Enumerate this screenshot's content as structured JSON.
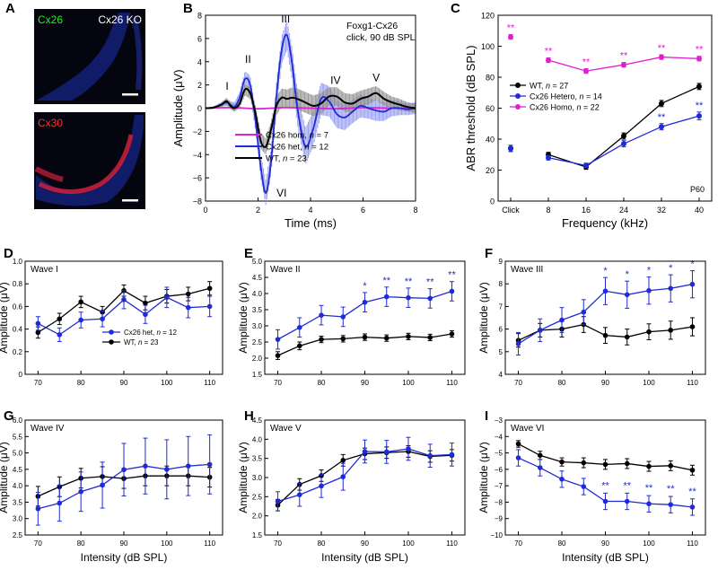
{
  "panel_a": {
    "letter": "A",
    "cx26_label": "Cx26",
    "ko_label": "Cx26 KO",
    "cx30_label": "Cx30"
  },
  "colors": {
    "wt": "#000000",
    "het": "#1f2bd6",
    "hom": "#e020d0",
    "het_fill": "#8c94f0"
  },
  "chart_data": [
    {
      "id": "B",
      "type": "line",
      "title": "Foxg1-Cx26",
      "subtitle": "click, 90 dB SPL",
      "xlabel": "Time (ms)",
      "ylabel": "Amplitude (μV)",
      "xlim": [
        0,
        8
      ],
      "ylim": [
        -8,
        8
      ],
      "xticks": [
        0,
        2,
        4,
        6,
        8
      ],
      "yticks": [
        -8,
        -6,
        -4,
        -2,
        0,
        2,
        4,
        6,
        8
      ],
      "wave_labels": [
        {
          "text": "I",
          "x": 0.82,
          "y": 1.6
        },
        {
          "text": "II",
          "x": 1.62,
          "y": 3.9
        },
        {
          "text": "III",
          "x": 3.05,
          "y": 7.4
        },
        {
          "text": "IV",
          "x": 4.95,
          "y": 2.1
        },
        {
          "text": "V",
          "x": 6.5,
          "y": 2.3
        },
        {
          "text": "VI",
          "x": 2.9,
          "y": -7.6
        }
      ],
      "legend": [
        {
          "label": "Cx26 hom, n = 7",
          "color": "#e020d0"
        },
        {
          "label": "Cx26 het, n = 12",
          "color": "#1f2bd6"
        },
        {
          "label": "WT, n = 23",
          "color": "#000000"
        }
      ],
      "series": [
        {
          "name": "WT",
          "color": "#000000",
          "x": [
            0,
            0.3,
            0.6,
            0.8,
            0.95,
            1.1,
            1.3,
            1.5,
            1.7,
            1.9,
            2.1,
            2.3,
            2.5,
            2.7,
            2.9,
            3.1,
            3.3,
            3.5,
            3.8,
            4.1,
            4.4,
            4.7,
            5.0,
            5.3,
            5.6,
            5.9,
            6.2,
            6.5,
            6.8,
            7.1,
            7.4,
            7.7,
            8.0
          ],
          "y": [
            0,
            0.05,
            0.3,
            0.6,
            0.2,
            0.0,
            0.4,
            1.6,
            1.3,
            -0.4,
            -2.8,
            -3.3,
            -1.8,
            0.2,
            0.9,
            0.8,
            0.9,
            0.8,
            0.5,
            0.2,
            0.4,
            1.0,
            1.0,
            0.5,
            0.4,
            0.8,
            1.0,
            1.3,
            0.8,
            0.5,
            0.3,
            0.1,
            0.0
          ],
          "err": [
            0,
            0.1,
            0.2,
            0.3,
            0.3,
            0.3,
            0.4,
            0.5,
            0.5,
            0.6,
            0.7,
            0.7,
            0.7,
            0.8,
            0.8,
            0.8,
            0.9,
            0.9,
            0.9,
            0.9,
            0.9,
            0.8,
            0.8,
            0.8,
            0.8,
            0.7,
            0.7,
            0.6,
            0.6,
            0.5,
            0.5,
            0.4,
            0.4
          ]
        },
        {
          "name": "Cx26 het",
          "color": "#1f2bd6",
          "x": [
            0,
            0.3,
            0.6,
            0.8,
            0.95,
            1.1,
            1.3,
            1.5,
            1.7,
            1.9,
            2.1,
            2.3,
            2.5,
            2.7,
            2.9,
            3.1,
            3.3,
            3.5,
            3.8,
            4.1,
            4.4,
            4.7,
            5.0,
            5.3,
            5.6,
            5.9,
            6.2,
            6.5,
            6.8,
            7.1,
            7.4,
            7.7,
            8.0
          ],
          "y": [
            0,
            0.05,
            0.3,
            0.5,
            0.3,
            0.1,
            0.9,
            2.5,
            2.0,
            -1.0,
            -5.0,
            -7.3,
            -4.5,
            1.0,
            5.0,
            6.3,
            3.8,
            0.0,
            -3.3,
            -1.8,
            0.8,
            0.6,
            -0.5,
            -0.8,
            -0.3,
            0.2,
            0.0,
            -0.2,
            -0.3,
            0.0,
            0.0,
            -0.1,
            0.0
          ],
          "err": [
            0,
            0.1,
            0.2,
            0.3,
            0.3,
            0.4,
            0.5,
            0.7,
            0.8,
            0.9,
            1.0,
            1.1,
            1.1,
            1.2,
            1.2,
            1.3,
            1.4,
            1.5,
            1.6,
            1.5,
            1.4,
            1.3,
            1.2,
            1.1,
            1.0,
            1.0,
            0.9,
            0.9,
            0.8,
            0.7,
            0.6,
            0.5,
            0.5
          ]
        },
        {
          "name": "Cx26 hom",
          "color": "#e020d0",
          "x": [
            0,
            1,
            2,
            3,
            4,
            5,
            6,
            7,
            8
          ],
          "y": [
            0,
            0.05,
            -0.05,
            0.05,
            0,
            -0.05,
            0.05,
            0,
            0
          ],
          "err": [
            0,
            0,
            0,
            0,
            0,
            0,
            0,
            0,
            0
          ]
        }
      ]
    },
    {
      "id": "C",
      "type": "line",
      "xlabel": "Frequency (kHz)",
      "ylabel": "ABR threshold (dB SPL)",
      "categories": [
        "Click",
        "8",
        "16",
        "24",
        "32",
        "40"
      ],
      "ylim": [
        0,
        120
      ],
      "yticks": [
        0,
        20,
        40,
        60,
        80,
        100,
        120
      ],
      "annotation": "P60",
      "legend": [
        {
          "label": "WT, n = 27",
          "color": "#000000"
        },
        {
          "label": "Cx26 Hetero, n = 14",
          "color": "#1f2bd6"
        },
        {
          "label": "Cx26 Homo, n = 22",
          "color": "#e020d0"
        }
      ],
      "series": [
        {
          "name": "WT",
          "color": "#000000",
          "values": [
            34,
            30,
            22,
            42,
            63,
            74
          ],
          "err": [
            2,
            1.5,
            1.5,
            2,
            2,
            2
          ],
          "connect_from": 1,
          "stars": []
        },
        {
          "name": "Cx26 Hetero",
          "color": "#1f2bd6",
          "values": [
            34,
            28,
            23,
            37,
            48,
            55
          ],
          "err": [
            2,
            1.5,
            1.5,
            2,
            2,
            2.5
          ],
          "connect_from": 1,
          "stars": [
            "",
            "",
            "",
            "",
            "**",
            "**"
          ]
        },
        {
          "name": "Cx26 Homo",
          "color": "#e020d0",
          "values": [
            106,
            91,
            84,
            88,
            93,
            92
          ],
          "err": [
            1.5,
            1.5,
            1.5,
            1.5,
            1.5,
            1.5
          ],
          "connect_from": 1,
          "stars": [
            "**",
            "**",
            "**",
            "**",
            "**",
            "**"
          ]
        }
      ]
    },
    {
      "id": "D",
      "type": "line",
      "title": "Wave I",
      "xlabel": "",
      "ylabel": "Amplitude (μV)",
      "x": [
        70,
        75,
        80,
        85,
        90,
        95,
        100,
        105,
        110
      ],
      "xticks": [
        70,
        80,
        90,
        100,
        110
      ],
      "ylim": [
        0,
        1.0
      ],
      "yticks": [
        0,
        0.2,
        0.4,
        0.6,
        0.8,
        1.0
      ],
      "ytick_labels": [
        "0",
        "0.2",
        "0.4",
        "0.6",
        "0.8",
        "1.0"
      ],
      "legend": [
        {
          "label": "Cx26 het, n = 12",
          "color": "#1f2bd6"
        },
        {
          "label": "WT, n = 23",
          "color": "#000000"
        }
      ],
      "series": [
        {
          "name": "WT",
          "color": "#000000",
          "values": [
            0.37,
            0.49,
            0.64,
            0.55,
            0.74,
            0.63,
            0.69,
            0.71,
            0.76
          ],
          "err": [
            0.05,
            0.05,
            0.05,
            0.05,
            0.05,
            0.06,
            0.06,
            0.06,
            0.06
          ],
          "stars": []
        },
        {
          "name": "Cx26 het",
          "color": "#1f2bd6",
          "values": [
            0.45,
            0.35,
            0.48,
            0.49,
            0.66,
            0.53,
            0.68,
            0.59,
            0.6
          ],
          "err": [
            0.06,
            0.06,
            0.07,
            0.07,
            0.08,
            0.08,
            0.09,
            0.09,
            0.09
          ],
          "stars": []
        }
      ]
    },
    {
      "id": "E",
      "type": "line",
      "title": "Wave II",
      "xlabel": "",
      "ylabel": "Amplitude (μV)",
      "x": [
        70,
        75,
        80,
        85,
        90,
        95,
        100,
        105,
        110
      ],
      "xticks": [
        70,
        80,
        90,
        100,
        110
      ],
      "ylim": [
        1.5,
        5.0
      ],
      "yticks": [
        1.5,
        2.0,
        2.5,
        3.0,
        3.5,
        4.0,
        4.5,
        5.0
      ],
      "ytick_labels": [
        "1.5",
        "2.0",
        "2.5",
        "3.0",
        "3.5",
        "4.0",
        "4.5",
        "5.0"
      ],
      "series": [
        {
          "name": "WT",
          "color": "#000000",
          "values": [
            2.08,
            2.38,
            2.58,
            2.6,
            2.65,
            2.62,
            2.67,
            2.64,
            2.75
          ],
          "err": [
            0.12,
            0.12,
            0.1,
            0.1,
            0.1,
            0.1,
            0.1,
            0.1,
            0.1
          ],
          "stars": []
        },
        {
          "name": "Cx26 het",
          "color": "#1f2bd6",
          "values": [
            2.58,
            2.95,
            3.33,
            3.28,
            3.73,
            3.9,
            3.87,
            3.85,
            4.07
          ],
          "err": [
            0.3,
            0.3,
            0.3,
            0.3,
            0.3,
            0.3,
            0.3,
            0.3,
            0.3
          ],
          "stars": [
            "",
            "",
            "",
            "",
            "*",
            "**",
            "**",
            "**",
            "**"
          ]
        }
      ]
    },
    {
      "id": "F",
      "type": "line",
      "title": "Wave III",
      "xlabel": "",
      "ylabel": "Amplitude (μV)",
      "x": [
        70,
        75,
        80,
        85,
        90,
        95,
        100,
        105,
        110
      ],
      "xticks": [
        70,
        80,
        90,
        100,
        110
      ],
      "ylim": [
        4,
        9
      ],
      "yticks": [
        4,
        5,
        6,
        7,
        8,
        9
      ],
      "ytick_labels": [
        "4",
        "5",
        "6",
        "7",
        "8",
        "9"
      ],
      "series": [
        {
          "name": "WT",
          "color": "#000000",
          "values": [
            5.5,
            5.95,
            6.0,
            6.2,
            5.72,
            5.65,
            5.88,
            5.95,
            6.1
          ],
          "err": [
            0.3,
            0.3,
            0.35,
            0.35,
            0.35,
            0.35,
            0.35,
            0.4,
            0.4
          ],
          "stars": []
        },
        {
          "name": "Cx26 het",
          "color": "#1f2bd6",
          "values": [
            5.35,
            5.95,
            6.4,
            6.75,
            7.68,
            7.52,
            7.7,
            7.8,
            7.98
          ],
          "err": [
            0.5,
            0.5,
            0.55,
            0.55,
            0.6,
            0.6,
            0.6,
            0.6,
            0.6
          ],
          "stars": [
            "",
            "",
            "",
            "",
            "*",
            "*",
            "*",
            "*",
            "*"
          ]
        }
      ]
    },
    {
      "id": "G",
      "type": "line",
      "title": "Wave IV",
      "xlabel": "Intensity (dB SPL)",
      "ylabel": "Amplitude (μV)",
      "x": [
        70,
        75,
        80,
        85,
        90,
        95,
        100,
        105,
        110
      ],
      "xticks": [
        70,
        80,
        90,
        100,
        110
      ],
      "ylim": [
        2.5,
        6.0
      ],
      "yticks": [
        2.5,
        3.0,
        3.5,
        4.0,
        4.5,
        5.0,
        5.5,
        6.0
      ],
      "ytick_labels": [
        "2.5",
        "3.0",
        "3.5",
        "4.0",
        "4.5",
        "5.0",
        "5.5",
        "6.0"
      ],
      "series": [
        {
          "name": "WT",
          "color": "#000000",
          "values": [
            3.68,
            3.97,
            4.23,
            4.28,
            4.22,
            4.3,
            4.3,
            4.3,
            4.26
          ],
          "err": [
            0.3,
            0.3,
            0.3,
            0.3,
            0.3,
            0.3,
            0.3,
            0.3,
            0.3
          ],
          "stars": []
        },
        {
          "name": "Cx26 het",
          "color": "#1f2bd6",
          "values": [
            3.3,
            3.47,
            3.82,
            4.02,
            4.49,
            4.6,
            4.5,
            4.6,
            4.65
          ],
          "err": [
            0.5,
            0.55,
            0.6,
            0.7,
            0.8,
            0.85,
            0.9,
            0.9,
            0.9
          ],
          "stars": []
        }
      ]
    },
    {
      "id": "H",
      "type": "line",
      "title": "Wave V",
      "xlabel": "Intensity (dB SPL)",
      "ylabel": "Amplitude (μV)",
      "x": [
        70,
        75,
        80,
        85,
        90,
        95,
        100,
        105,
        110
      ],
      "xticks": [
        70,
        80,
        90,
        100,
        110
      ],
      "ylim": [
        1.5,
        4.5
      ],
      "yticks": [
        1.5,
        2.0,
        2.5,
        3.0,
        3.5,
        4.0,
        4.5
      ],
      "ytick_labels": [
        "1.5",
        "2.0",
        "2.5",
        "3.0",
        "3.5",
        "4.0",
        "4.5"
      ],
      "series": [
        {
          "name": "WT",
          "color": "#000000",
          "values": [
            2.28,
            2.82,
            3.05,
            3.45,
            3.62,
            3.65,
            3.68,
            3.55,
            3.58
          ],
          "err": [
            0.15,
            0.15,
            0.15,
            0.15,
            0.15,
            0.15,
            0.15,
            0.15,
            0.15
          ],
          "stars": []
        },
        {
          "name": "Cx26 het",
          "color": "#1f2bd6",
          "values": [
            2.38,
            2.55,
            2.78,
            3.02,
            3.68,
            3.67,
            3.75,
            3.57,
            3.6
          ],
          "err": [
            0.25,
            0.3,
            0.3,
            0.35,
            0.3,
            0.3,
            0.3,
            0.3,
            0.3
          ],
          "stars": []
        }
      ]
    },
    {
      "id": "I",
      "type": "line",
      "title": "Wave VI",
      "xlabel": "Intensity (dB SPL)",
      "ylabel": "Amplitude (μV)",
      "x": [
        70,
        75,
        80,
        85,
        90,
        95,
        100,
        105,
        110
      ],
      "xticks": [
        70,
        80,
        90,
        100,
        110
      ],
      "ylim": [
        -10,
        -3
      ],
      "yticks": [
        -10,
        -9,
        -8,
        -7,
        -6,
        -5,
        -4,
        -3
      ],
      "ytick_labels": [
        "−10",
        "−9",
        "−8",
        "−7",
        "−6",
        "−5",
        "−4",
        "−3"
      ],
      "series": [
        {
          "name": "WT",
          "color": "#000000",
          "values": [
            -4.45,
            -5.15,
            -5.55,
            -5.6,
            -5.7,
            -5.65,
            -5.82,
            -5.78,
            -6.05
          ],
          "err": [
            0.2,
            0.25,
            0.25,
            0.3,
            0.3,
            0.3,
            0.3,
            0.3,
            0.3
          ],
          "stars": []
        },
        {
          "name": "Cx26 het",
          "color": "#1f2bd6",
          "values": [
            -5.3,
            -5.9,
            -6.6,
            -7.05,
            -7.95,
            -7.95,
            -8.1,
            -8.15,
            -8.3
          ],
          "err": [
            0.5,
            0.5,
            0.5,
            0.5,
            0.5,
            0.5,
            0.5,
            0.5,
            0.5
          ],
          "stars": [
            "",
            "",
            "",
            "",
            "**",
            "**",
            "**",
            "**",
            "**"
          ]
        }
      ]
    }
  ]
}
